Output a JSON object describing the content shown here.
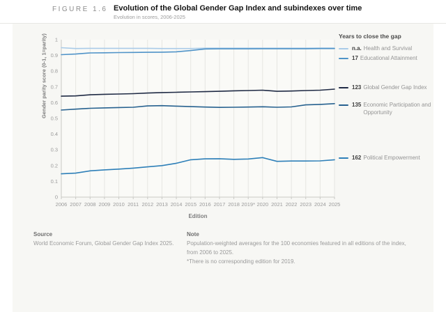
{
  "figure": {
    "label": "FIGURE 1.6",
    "title": "Evolution of the Global Gender Gap Index and subindexes over time",
    "subtitle": "Evolution in scores, 2006-2025"
  },
  "chart_data": {
    "type": "line",
    "title": "Evolution of the Global Gender Gap Index and subindexes over time",
    "subtitle": "Evolution in scores, 2006-2025",
    "xlabel": "Edition",
    "ylabel": "Gender parity score (0-1, 1=parity)",
    "ylim": [
      0,
      1
    ],
    "grid": "vertical-only",
    "legend_position": "right",
    "legend_title": "Years to close the gap",
    "categories": [
      "2006",
      "2007",
      "2008",
      "2009",
      "2010",
      "2011",
      "2012",
      "2013",
      "2014",
      "2015",
      "2016",
      "2017",
      "2018",
      "2019*",
      "2020",
      "2021",
      "2022",
      "2023",
      "2024",
      "2025"
    ],
    "y_tick_labels": [
      "0",
      "0.1",
      "0.2",
      "0.3",
      "0.4",
      "0.5",
      "0.6",
      "0.7",
      "0.8",
      "0.9",
      "1"
    ],
    "series": [
      {
        "name": "Health and Survival",
        "years_to_close": "n.a.",
        "color": "#a9cbe8",
        "values": [
          0.949,
          0.944,
          0.945,
          0.945,
          0.945,
          0.945,
          0.945,
          0.944,
          0.944,
          0.944,
          0.946,
          0.946,
          0.946,
          0.946,
          0.946,
          0.946,
          0.946,
          0.946,
          0.947,
          0.947
        ]
      },
      {
        "name": "Educational Attainment",
        "years_to_close": "17",
        "color": "#4f93c8",
        "values": [
          0.905,
          0.909,
          0.916,
          0.917,
          0.918,
          0.919,
          0.92,
          0.921,
          0.923,
          0.931,
          0.941,
          0.942,
          0.942,
          0.942,
          0.943,
          0.943,
          0.943,
          0.943,
          0.944,
          0.944
        ]
      },
      {
        "name": "Global Gender Gap Index",
        "years_to_close": "123",
        "color": "#1f2a44",
        "values": [
          0.641,
          0.643,
          0.65,
          0.653,
          0.655,
          0.657,
          0.661,
          0.664,
          0.666,
          0.668,
          0.67,
          0.672,
          0.675,
          0.677,
          0.679,
          0.672,
          0.674,
          0.677,
          0.679,
          0.686
        ]
      },
      {
        "name": "Economic Participation and Opportunity",
        "years_to_close": "135",
        "color": "#26618f",
        "values": [
          0.553,
          0.559,
          0.564,
          0.567,
          0.569,
          0.571,
          0.579,
          0.581,
          0.578,
          0.575,
          0.572,
          0.57,
          0.571,
          0.572,
          0.574,
          0.571,
          0.573,
          0.586,
          0.589,
          0.594
        ]
      },
      {
        "name": "Political Empowerment",
        "years_to_close": "162",
        "color": "#2d7fb8",
        "values": [
          0.148,
          0.152,
          0.167,
          0.173,
          0.178,
          0.184,
          0.192,
          0.2,
          0.215,
          0.237,
          0.243,
          0.244,
          0.24,
          0.242,
          0.251,
          0.227,
          0.229,
          0.229,
          0.23,
          0.237
        ]
      }
    ]
  },
  "footer": {
    "source_label": "Source",
    "source_text": "World Economic Forum, Global Gender Gap Index 2025.",
    "note_label": "Note",
    "note_text": "Population-weighted averages for the 100 economies featured in all editions of the index, from 2006 to 2025.",
    "note_asterisk": "*There is no corresponding edition for 2019."
  }
}
